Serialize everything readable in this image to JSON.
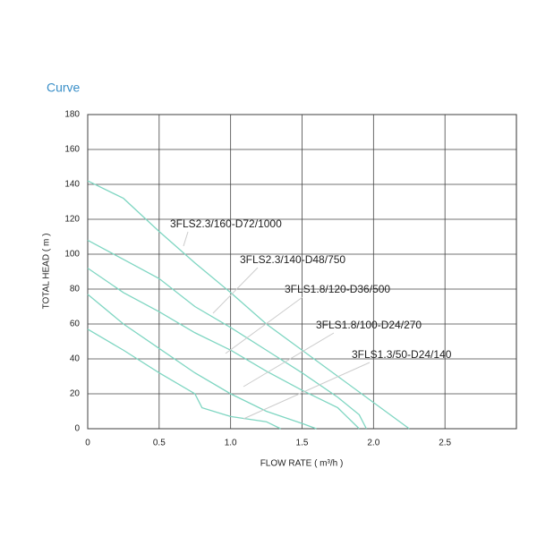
{
  "chart_data": {
    "type": "line",
    "title": "Curve",
    "xlabel": "FLOW RATE ( m³/h )",
    "ylabel": "TOTAL HEAD ( m )",
    "xlim": [
      0,
      3
    ],
    "ylim": [
      0,
      180
    ],
    "xticks": [
      0,
      0.5,
      {
        "value": 1,
        "label": "1.0"
      },
      1.5,
      {
        "value": 2,
        "label": "2.0"
      },
      2.5
    ],
    "yticks": [
      0,
      20,
      40,
      60,
      80,
      100,
      120,
      140,
      160,
      180
    ],
    "grid": true,
    "series": [
      {
        "name": "3FLS2.3/160-D72/1000",
        "color": "#7fd6c2",
        "x": [
          0,
          0.25,
          0.5,
          0.75,
          1.0,
          1.25,
          1.5,
          1.75,
          2.0,
          2.25
        ],
        "values": [
          142,
          132,
          113,
          95,
          78,
          60,
          45,
          30,
          15,
          0
        ]
      },
      {
        "name": "3FLS2.3/140-D48/750",
        "color": "#7fd6c2",
        "x": [
          0,
          0.25,
          0.5,
          0.75,
          1.0,
          1.25,
          1.5,
          1.75,
          1.9,
          1.95
        ],
        "values": [
          108,
          97,
          86,
          70,
          58,
          45,
          32,
          18,
          8,
          0
        ]
      },
      {
        "name": "3FLS1.8/120-D36/500",
        "color": "#7fd6c2",
        "x": [
          0,
          0.25,
          0.5,
          0.75,
          1.0,
          1.25,
          1.5,
          1.75,
          1.9
        ],
        "values": [
          92,
          78,
          67,
          55,
          45,
          33,
          22,
          12,
          0
        ]
      },
      {
        "name": "3FLS1.8/100-D24/270",
        "color": "#7fd6c2",
        "x": [
          0,
          0.25,
          0.5,
          0.75,
          1.0,
          1.25,
          1.5,
          1.6
        ],
        "values": [
          77,
          60,
          46,
          32,
          20,
          10,
          3,
          0
        ]
      },
      {
        "name": "3FLS1.3/50-D24/140",
        "color": "#7fd6c2",
        "x": [
          0,
          0.25,
          0.5,
          0.75,
          0.8,
          1.0,
          1.25,
          1.35
        ],
        "values": [
          57,
          45,
          32,
          20,
          12,
          7,
          4,
          0
        ]
      }
    ]
  }
}
